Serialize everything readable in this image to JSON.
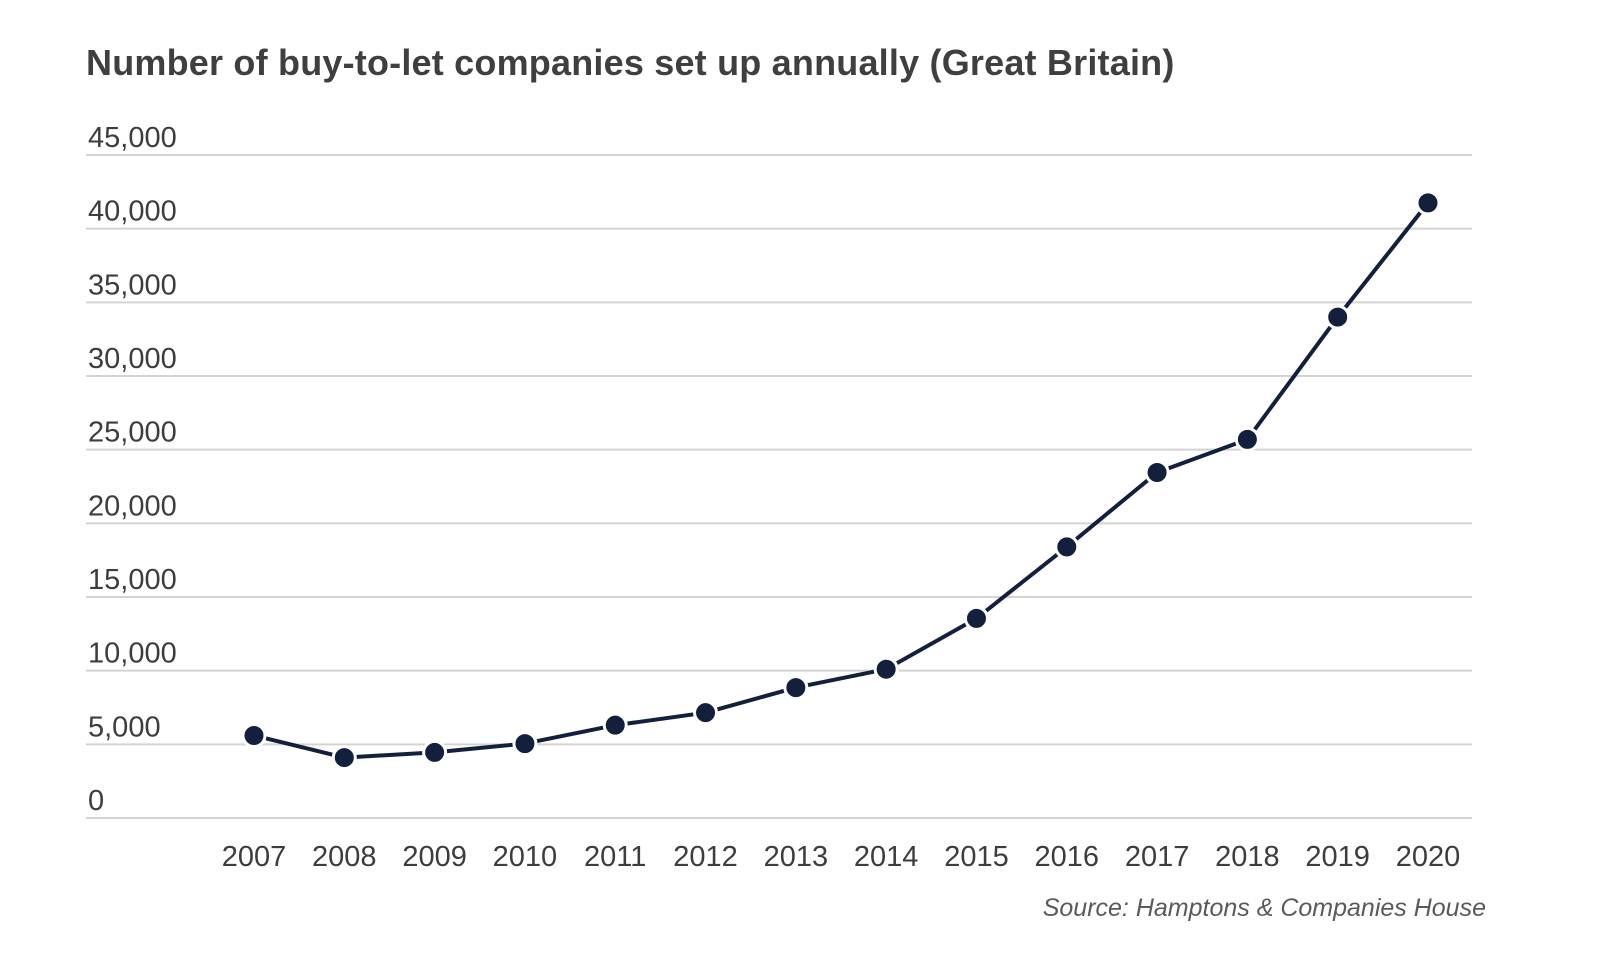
{
  "chart_data": {
    "type": "line",
    "title": "Number of buy-to-let companies set up annually (Great Britain)",
    "xlabel": "",
    "ylabel": "",
    "x": [
      "2007",
      "2008",
      "2009",
      "2010",
      "2011",
      "2012",
      "2013",
      "2014",
      "2015",
      "2016",
      "2017",
      "2018",
      "2019",
      "2020"
    ],
    "series": [
      {
        "values": [
          5600,
          4100,
          4450,
          5050,
          6300,
          7150,
          8850,
          10100,
          13550,
          18400,
          23450,
          25700,
          34000,
          41750
        ]
      }
    ],
    "ylim": [
      0,
      45000
    ],
    "yticks": [
      0,
      5000,
      10000,
      15000,
      20000,
      25000,
      30000,
      35000,
      40000,
      45000
    ],
    "ytick_labels": [
      "0",
      "5,000",
      "10,000",
      "15,000",
      "20,000",
      "25,000",
      "30,000",
      "35,000",
      "40,000",
      "45,000"
    ],
    "grid": "horizontal",
    "legend": "none",
    "line_color": "#13203d",
    "marker_color": "#13203d",
    "grid_color": "#d3d3d3",
    "source": "Source: Hamptons & Companies House"
  }
}
